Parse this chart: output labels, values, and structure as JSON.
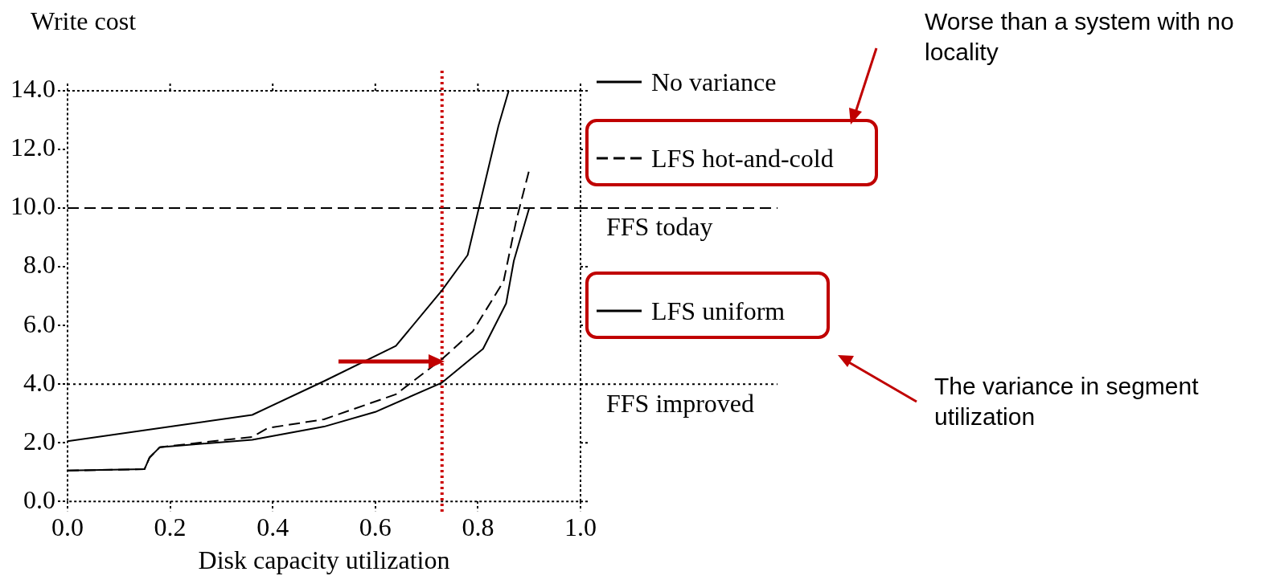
{
  "chart_data": {
    "type": "line",
    "xlabel": "Disk capacity utilization",
    "ylabel": "Write cost",
    "xlim": [
      0,
      1
    ],
    "ylim": [
      0,
      14
    ],
    "xticks": [
      {
        "value": 0,
        "label": "0.0"
      },
      {
        "value": 0.2,
        "label": "0.2"
      },
      {
        "value": 0.4,
        "label": "0.4"
      },
      {
        "value": 0.6,
        "label": "0.6"
      },
      {
        "value": 0.8,
        "label": "0.8"
      },
      {
        "value": 1,
        "label": "1.0"
      }
    ],
    "yticks": [
      {
        "value": 0,
        "label": "0.0"
      },
      {
        "value": 2,
        "label": "2.0"
      },
      {
        "value": 4,
        "label": "4.0"
      },
      {
        "value": 6,
        "label": "6.0"
      },
      {
        "value": 8,
        "label": "8.0"
      },
      {
        "value": 10,
        "label": "10.0"
      },
      {
        "value": 12,
        "label": "12.0"
      },
      {
        "value": 14,
        "label": "14.0"
      }
    ],
    "legend": "right",
    "grid": false,
    "marker": "none",
    "series": [
      {
        "name": "No variance",
        "color": "#000000",
        "line_style": "solid",
        "x": [
          0,
          0.22,
          0.36,
          0.5,
          0.64,
          0.73,
          0.78,
          0.81,
          0.84,
          0.86
        ],
        "values": [
          2.05,
          2.6,
          2.95,
          4.1,
          5.3,
          7.2,
          8.4,
          10.6,
          12.8,
          14
        ]
      },
      {
        "name": "LFS hot-and-cold",
        "color": "#000000",
        "line_style": "dashed",
        "x": [
          0,
          0.15,
          0.16,
          0.18,
          0.36,
          0.39,
          0.5,
          0.64,
          0.73,
          0.79,
          0.85,
          0.875,
          0.9
        ],
        "values": [
          1.05,
          1.1,
          1.5,
          1.85,
          2.2,
          2.5,
          2.8,
          3.65,
          4.85,
          5.8,
          7.5,
          9.6,
          11.3
        ]
      },
      {
        "name": "LFS uniform",
        "color": "#000000",
        "line_style": "solid",
        "x": [
          0,
          0.15,
          0.16,
          0.18,
          0.36,
          0.5,
          0.6,
          0.73,
          0.81,
          0.855,
          0.87,
          0.9
        ],
        "values": [
          1.05,
          1.1,
          1.5,
          1.85,
          2.1,
          2.55,
          3.05,
          4.05,
          5.2,
          6.75,
          8.2,
          10
        ]
      }
    ],
    "ref_lines": [
      {
        "axis": "y",
        "value": 10,
        "label": "FFS today",
        "color": "#000000",
        "line_style": "dashed"
      },
      {
        "axis": "y",
        "value": 4,
        "label": "FFS improved",
        "color": "#000000",
        "line_style": "dotted"
      },
      {
        "axis": "x",
        "value": 0.73,
        "color": "#cc0000",
        "line_style": "dotted"
      }
    ],
    "annotations": [
      "Worse than a system with no locality",
      "The variance in segment utilization"
    ]
  }
}
